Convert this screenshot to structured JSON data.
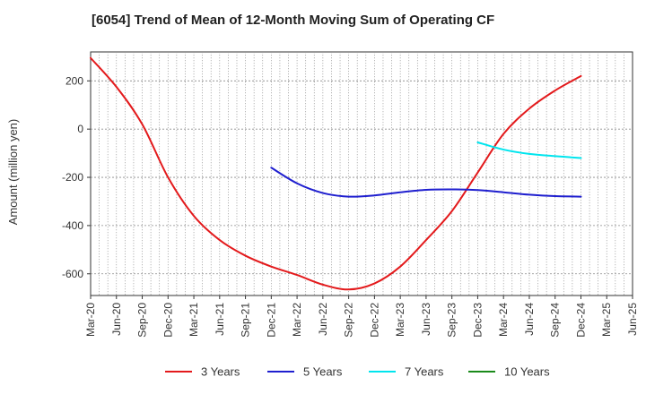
{
  "chart_data": {
    "type": "line",
    "title": "[6054]  Trend of Mean of 12-Month Moving Sum of Operating CF",
    "ylabel": "Amount (million yen)",
    "xlabel": "",
    "ylim": [
      -690,
      320
    ],
    "yticks": [
      200,
      0,
      -200,
      -400,
      -600
    ],
    "ytick_labels": [
      "200",
      "0",
      "-200",
      "-400",
      "-600"
    ],
    "x_start": "Mar-20",
    "x_end": "Jun-25",
    "xtick_labels": [
      "Mar-20",
      "Jun-20",
      "Sep-20",
      "Dec-20",
      "Mar-21",
      "Jun-21",
      "Sep-21",
      "Dec-21",
      "Mar-22",
      "Jun-22",
      "Sep-22",
      "Dec-22",
      "Mar-23",
      "Jun-23",
      "Sep-23",
      "Dec-23",
      "Mar-24",
      "Jun-24",
      "Sep-24",
      "Dec-24",
      "Mar-25",
      "Jun-25"
    ],
    "grid": true,
    "legend_position": "bottom",
    "series": [
      {
        "name": "3 Years",
        "color": "#e31a1c",
        "points": [
          [
            0,
            295
          ],
          [
            3,
            175
          ],
          [
            6,
            20
          ],
          [
            9,
            -200
          ],
          [
            12,
            -360
          ],
          [
            15,
            -460
          ],
          [
            18,
            -525
          ],
          [
            21,
            -570
          ],
          [
            24,
            -605
          ],
          [
            27,
            -645
          ],
          [
            30,
            -665
          ],
          [
            33,
            -640
          ],
          [
            36,
            -570
          ],
          [
            39,
            -460
          ],
          [
            42,
            -340
          ],
          [
            45,
            -180
          ],
          [
            48,
            -20
          ],
          [
            51,
            85
          ],
          [
            54,
            160
          ],
          [
            57,
            220
          ]
        ]
      },
      {
        "name": "5 Years",
        "color": "#1f1fcf",
        "points": [
          [
            21,
            -160
          ],
          [
            24,
            -225
          ],
          [
            27,
            -265
          ],
          [
            30,
            -280
          ],
          [
            33,
            -275
          ],
          [
            36,
            -262
          ],
          [
            39,
            -252
          ],
          [
            42,
            -250
          ],
          [
            45,
            -253
          ],
          [
            48,
            -262
          ],
          [
            51,
            -272
          ],
          [
            54,
            -278
          ],
          [
            57,
            -280
          ]
        ]
      },
      {
        "name": "7 Years",
        "color": "#00e5ee",
        "points": [
          [
            45,
            -55
          ],
          [
            48,
            -85
          ],
          [
            51,
            -103
          ],
          [
            54,
            -112
          ],
          [
            57,
            -120
          ]
        ]
      },
      {
        "name": "10 Years",
        "color": "#1a8a1a",
        "points": []
      }
    ]
  }
}
